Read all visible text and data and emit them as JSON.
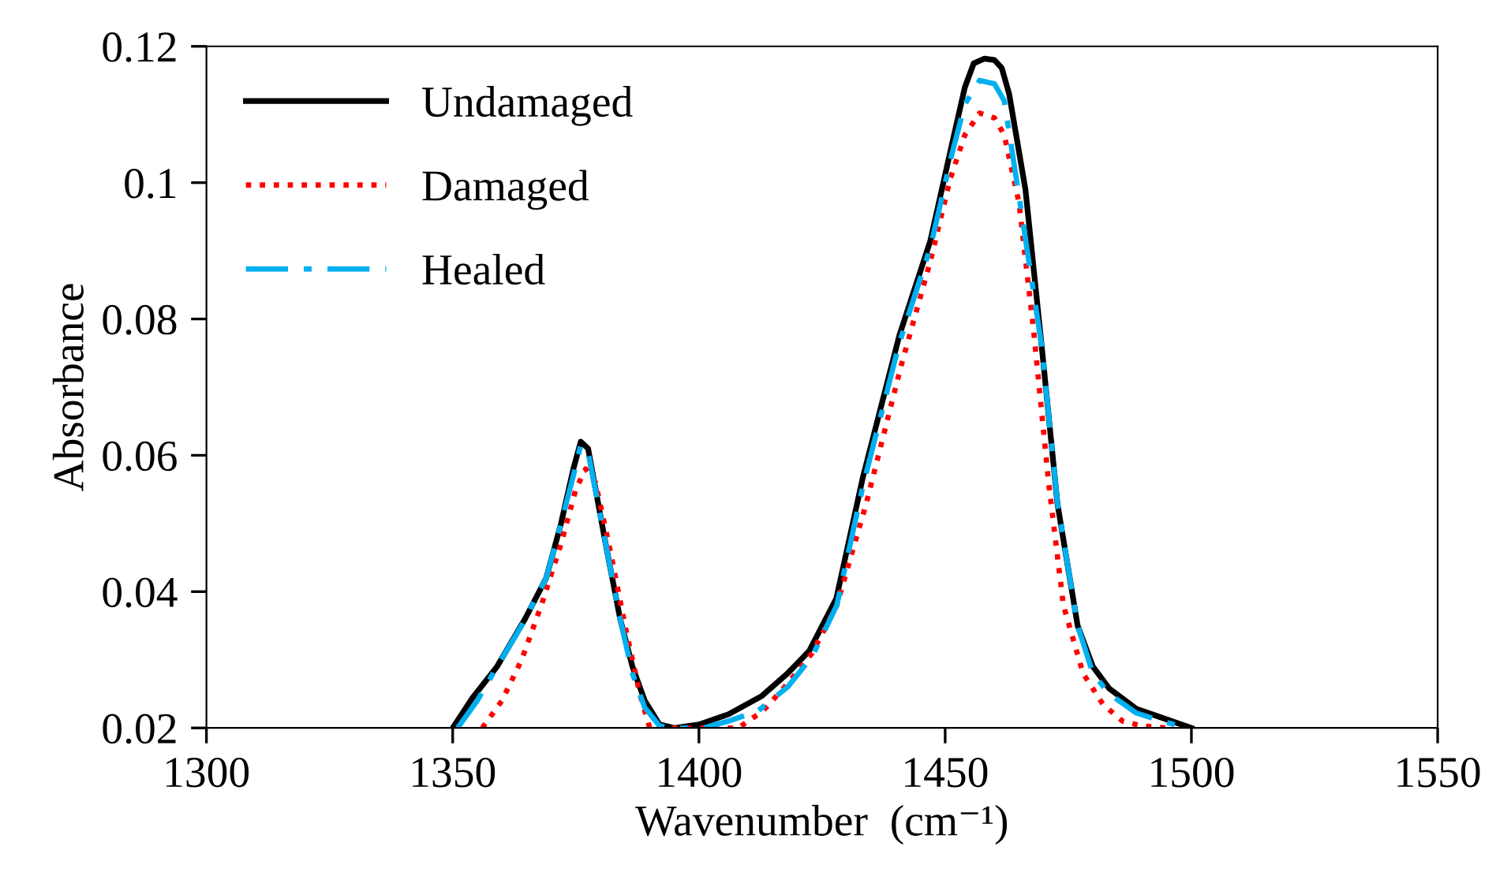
{
  "chart_data": {
    "type": "line",
    "xlabel": "Wavenumber  (cm⁻¹)",
    "ylabel": "Absorbance",
    "xlim": [
      1300,
      1550
    ],
    "ylim": [
      0.02,
      0.12
    ],
    "xticks": [
      1300,
      1350,
      1400,
      1450,
      1500,
      1550
    ],
    "yticks": [
      0.02,
      0.04,
      0.06,
      0.08,
      0.1,
      0.12
    ],
    "grid": false,
    "legend": "top left",
    "marker": "none",
    "series": [
      {
        "name": "Undamaged",
        "color": "#000000",
        "line_style": "solid",
        "x": [
          1350,
          1354,
          1359,
          1364.7,
          1369,
          1372,
          1374.5,
          1376,
          1377.5,
          1380.8,
          1384,
          1386.5,
          1389,
          1392,
          1395,
          1400,
          1406,
          1412.8,
          1418,
          1422.4,
          1427.9,
          1433.3,
          1440.7,
          1447,
          1451.3,
          1454,
          1455.8,
          1458,
          1460,
          1461.5,
          1463,
          1466.3,
          1469.6,
          1472.8,
          1476.9,
          1480,
          1483.3,
          1488.8,
          1494,
          1500
        ],
        "values": [
          0.02,
          0.0244,
          0.029,
          0.036,
          0.042,
          0.05,
          0.058,
          0.062,
          0.061,
          0.048,
          0.036,
          0.029,
          0.024,
          0.0205,
          0.02,
          0.0205,
          0.022,
          0.0247,
          0.028,
          0.0313,
          0.039,
          0.0568,
          0.0776,
          0.0915,
          0.1054,
          0.114,
          0.1175,
          0.1182,
          0.118,
          0.1168,
          0.113,
          0.099,
          0.076,
          0.0529,
          0.035,
          0.029,
          0.0258,
          0.0228,
          0.0215,
          0.02
        ]
      },
      {
        "name": "Damaged",
        "color": "#ff0000",
        "line_style": "dotted",
        "x": [
          1356,
          1360,
          1364,
          1368,
          1372,
          1375,
          1377,
          1379,
          1382,
          1385,
          1388,
          1390,
          1408,
          1413,
          1418,
          1423,
          1428,
          1434,
          1441,
          1447,
          1451,
          1454,
          1457,
          1460,
          1462,
          1465,
          1468,
          1471,
          1474,
          1478,
          1482,
          1486,
          1490,
          1495
        ],
        "values": [
          0.02,
          0.024,
          0.03,
          0.038,
          0.047,
          0.055,
          0.058,
          0.056,
          0.046,
          0.035,
          0.025,
          0.02,
          0.02,
          0.0225,
          0.0265,
          0.031,
          0.038,
          0.053,
          0.073,
          0.0885,
          0.1005,
          0.107,
          0.1102,
          0.1095,
          0.107,
          0.097,
          0.078,
          0.056,
          0.038,
          0.028,
          0.0235,
          0.021,
          0.0203,
          0.02
        ]
      },
      {
        "name": "Healed",
        "color": "#00b0f0",
        "line_style": "dashdot",
        "x": [
          1351,
          1355,
          1359,
          1364,
          1369,
          1372,
          1374.5,
          1376,
          1377.5,
          1380.8,
          1384,
          1386.5,
          1389,
          1392,
          1395,
          1401,
          1406,
          1412,
          1418,
          1423,
          1428,
          1433.3,
          1440.7,
          1447,
          1451.3,
          1454,
          1457,
          1460,
          1462,
          1465,
          1469.6,
          1472.8,
          1476.9,
          1480,
          1483.3,
          1488.8,
          1494,
          1499
        ],
        "values": [
          0.02,
          0.024,
          0.029,
          0.035,
          0.042,
          0.05,
          0.057,
          0.0615,
          0.0605,
          0.048,
          0.036,
          0.028,
          0.023,
          0.0203,
          0.02,
          0.02,
          0.021,
          0.0225,
          0.026,
          0.0305,
          0.038,
          0.0555,
          0.0765,
          0.0905,
          0.104,
          0.1115,
          0.115,
          0.1145,
          0.112,
          0.098,
          0.076,
          0.053,
          0.035,
          0.028,
          0.025,
          0.0222,
          0.021,
          0.02
        ]
      }
    ]
  }
}
